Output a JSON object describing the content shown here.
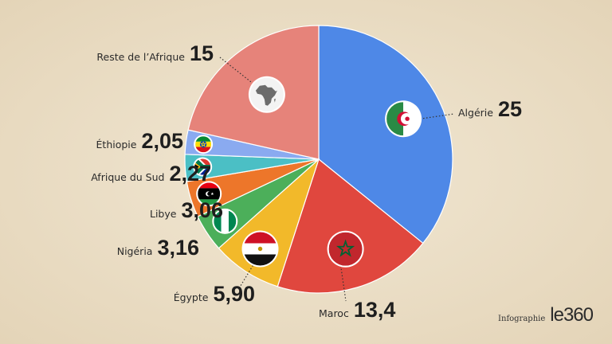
{
  "credit": {
    "label": "Infographie",
    "logo": "le360"
  },
  "chart_data": {
    "type": "pie",
    "start_angle_deg": 0,
    "direction": "clockwise",
    "series": [
      {
        "label": "Algérie",
        "value": 25,
        "value_label": "25",
        "color": "#4e88e7",
        "icon": "algeria-flag-icon"
      },
      {
        "label": "Maroc",
        "value": 13.4,
        "value_label": "13,4",
        "color": "#e0473e",
        "icon": "morocco-flag-icon"
      },
      {
        "label": "Égypte",
        "value": 5.9,
        "value_label": "5,90",
        "color": "#f2b92a",
        "icon": "egypt-flag-icon"
      },
      {
        "label": "Nigéria",
        "value": 3.16,
        "value_label": "3,16",
        "color": "#4caf5a",
        "icon": "nigeria-flag-icon"
      },
      {
        "label": "Libye",
        "value": 3.06,
        "value_label": "3,06",
        "color": "#ed762a",
        "icon": "libya-flag-icon"
      },
      {
        "label": "Afrique du Sud",
        "value": 2.27,
        "value_label": "2,27",
        "color": "#4bbfc5",
        "icon": "south-africa-flag-icon"
      },
      {
        "label": "Éthiopie",
        "value": 2.05,
        "value_label": "2,05",
        "color": "#8aaaf0",
        "icon": "ethiopia-flag-icon"
      },
      {
        "label": "Reste de l’Afrique",
        "value": 15,
        "value_label": "15",
        "color": "#e6837a",
        "icon": "africa-map-icon"
      }
    ]
  }
}
